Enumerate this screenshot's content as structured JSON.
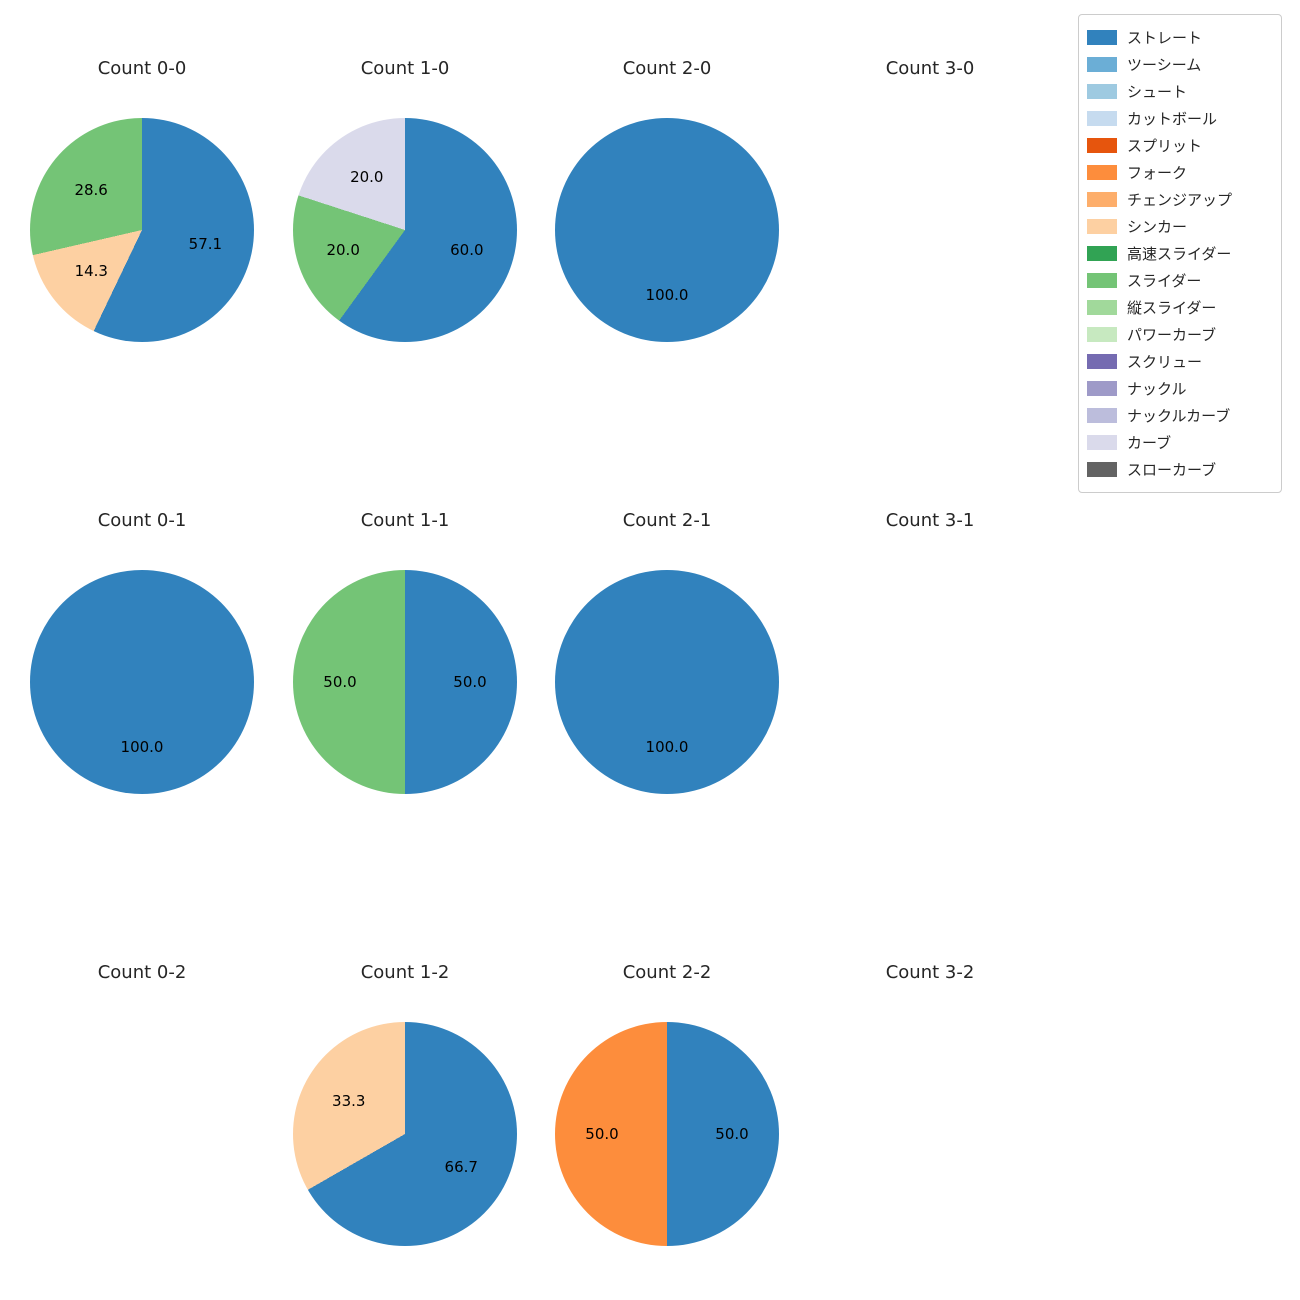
{
  "legend": {
    "items": [
      {
        "label": "ストレート",
        "color": "#3182bd"
      },
      {
        "label": "ツーシーム",
        "color": "#6baed6"
      },
      {
        "label": "シュート",
        "color": "#9ecae1"
      },
      {
        "label": "カットボール",
        "color": "#c6dbef"
      },
      {
        "label": "スプリット",
        "color": "#e6550d"
      },
      {
        "label": "フォーク",
        "color": "#fd8d3c"
      },
      {
        "label": "チェンジアップ",
        "color": "#fdae6b"
      },
      {
        "label": "シンカー",
        "color": "#fdd0a2"
      },
      {
        "label": "高速スライダー",
        "color": "#31a354"
      },
      {
        "label": "スライダー",
        "color": "#74c476"
      },
      {
        "label": "縦スライダー",
        "color": "#a1d99b"
      },
      {
        "label": "パワーカーブ",
        "color": "#c7e9c0"
      },
      {
        "label": "スクリュー",
        "color": "#756bb1"
      },
      {
        "label": "ナックル",
        "color": "#9e9ac8"
      },
      {
        "label": "ナックルカーブ",
        "color": "#bcbddc"
      },
      {
        "label": "カーブ",
        "color": "#dadaeb"
      },
      {
        "label": "スローカーブ",
        "color": "#636363"
      }
    ]
  },
  "chart_data": [
    {
      "type": "pie",
      "title": "Count 0-0",
      "labels": [
        "ストレート",
        "シンカー",
        "スライダー"
      ],
      "values": [
        57.1,
        14.3,
        28.6
      ]
    },
    {
      "type": "pie",
      "title": "Count 1-0",
      "labels": [
        "ストレート",
        "スライダー",
        "カーブ"
      ],
      "values": [
        60.0,
        20.0,
        20.0
      ]
    },
    {
      "type": "pie",
      "title": "Count 2-0",
      "labels": [
        "ストレート"
      ],
      "values": [
        100.0
      ]
    },
    {
      "type": "pie",
      "title": "Count 3-0",
      "labels": [],
      "values": []
    },
    {
      "type": "pie",
      "title": "Count 0-1",
      "labels": [
        "ストレート"
      ],
      "values": [
        100.0
      ]
    },
    {
      "type": "pie",
      "title": "Count 1-1",
      "labels": [
        "ストレート",
        "スライダー"
      ],
      "values": [
        50.0,
        50.0
      ]
    },
    {
      "type": "pie",
      "title": "Count 2-1",
      "labels": [
        "ストレート"
      ],
      "values": [
        100.0
      ]
    },
    {
      "type": "pie",
      "title": "Count 3-1",
      "labels": [],
      "values": []
    },
    {
      "type": "pie",
      "title": "Count 0-2",
      "labels": [],
      "values": []
    },
    {
      "type": "pie",
      "title": "Count 1-2",
      "labels": [
        "ストレート",
        "シンカー"
      ],
      "values": [
        66.7,
        33.3
      ]
    },
    {
      "type": "pie",
      "title": "Count 2-2",
      "labels": [
        "ストレート",
        "フォーク"
      ],
      "values": [
        50.0,
        50.0
      ]
    },
    {
      "type": "pie",
      "title": "Count 3-2",
      "labels": [],
      "values": []
    }
  ]
}
